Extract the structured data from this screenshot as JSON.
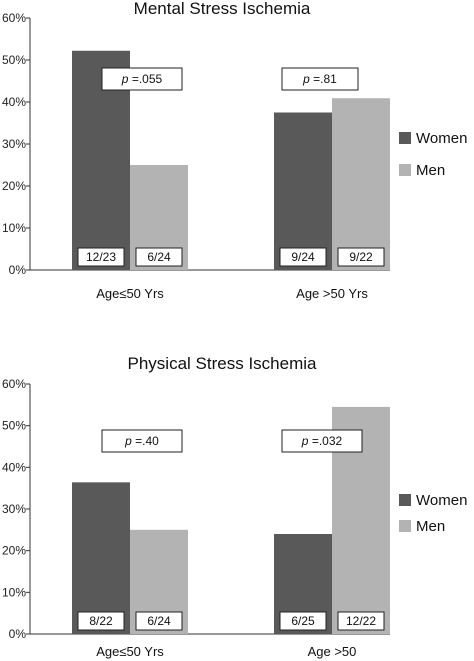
{
  "colors": {
    "women": "#595959",
    "men": "#b3b3b3",
    "axis": "#333333"
  },
  "chart_data": [
    {
      "type": "bar",
      "title": "Mental Stress Ischemia",
      "categories": [
        "Age≤50 Yrs",
        "Age >50 Yrs"
      ],
      "ylim": [
        0,
        60
      ],
      "yticks": [
        "0%",
        "10%",
        "20%",
        "30%",
        "40%",
        "50%",
        "60%"
      ],
      "series": [
        {
          "name": "Women",
          "values": [
            52.2,
            37.5
          ],
          "labels": [
            "12/23",
            "9/24"
          ]
        },
        {
          "name": "Men",
          "values": [
            25.0,
            40.9
          ],
          "labels": [
            "6/24",
            "9/22"
          ]
        }
      ],
      "annotations": [
        ".055",
        ".81"
      ],
      "p_symbol": "p",
      "legend": "right"
    },
    {
      "type": "bar",
      "title": "Physical Stress Ischemia",
      "categories": [
        "Age≤50 Yrs",
        "Age >50"
      ],
      "ylim": [
        0,
        60
      ],
      "yticks": [
        "0%",
        "10%",
        "20%",
        "30%",
        "40%",
        "50%",
        "60%"
      ],
      "series": [
        {
          "name": "Women",
          "values": [
            36.4,
            24.0
          ],
          "labels": [
            "8/22",
            "6/25"
          ]
        },
        {
          "name": "Men",
          "values": [
            25.0,
            54.5
          ],
          "labels": [
            "6/24",
            "12/22"
          ]
        }
      ],
      "annotations": [
        ".40",
        ".032"
      ],
      "p_symbol": "p",
      "legend": "right"
    }
  ]
}
